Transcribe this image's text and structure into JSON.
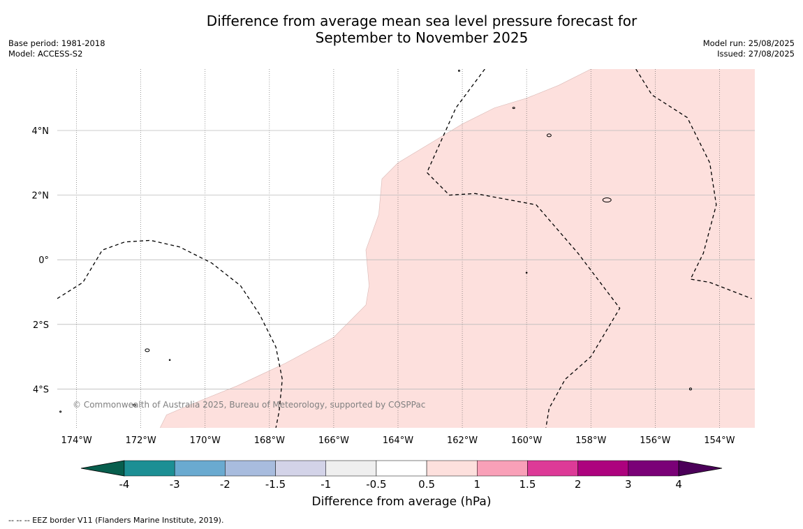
{
  "title_line1": "Difference from average mean sea level pressure forecast for",
  "title_line2": "September to November 2025",
  "meta": {
    "base_period": "Base period: 1981-2018",
    "model": "Model: ACCESS-S2",
    "model_run": "Model run: 25/08/2025",
    "issued": "Issued: 27/08/2025"
  },
  "copyright": "© Commonwealth of Australia 2025, Bureau of Meteorology, supported by COSPPac",
  "footer_note": "--  --  -- EEZ border V11 (Flanders Marine Institute, 2019).",
  "map": {
    "lon_range": [
      -174.6,
      -152.9
    ],
    "lat_range": [
      -5.2,
      5.9
    ],
    "lon_ticks": [
      {
        "value": -174,
        "label": "174°W"
      },
      {
        "value": -172,
        "label": "172°W"
      },
      {
        "value": -170,
        "label": "170°W"
      },
      {
        "value": -168,
        "label": "168°W"
      },
      {
        "value": -166,
        "label": "166°W"
      },
      {
        "value": -164,
        "label": "164°W"
      },
      {
        "value": -162,
        "label": "162°W"
      },
      {
        "value": -160,
        "label": "160°W"
      },
      {
        "value": -158,
        "label": "158°W"
      },
      {
        "value": -156,
        "label": "156°W"
      },
      {
        "value": -154,
        "label": "154°W"
      }
    ],
    "lat_ticks": [
      {
        "value": 4,
        "label": "4°N"
      },
      {
        "value": 2,
        "label": "2°N"
      },
      {
        "value": 0,
        "label": "0°"
      },
      {
        "value": -2,
        "label": "2°S"
      },
      {
        "value": -4,
        "label": "4°S"
      }
    ],
    "shaded_region": {
      "category": "0.5 to 1",
      "color": "#fde0dd",
      "boundary": [
        [
          -171.4,
          -5.2
        ],
        [
          -171.2,
          -4.8
        ],
        [
          -170.5,
          -4.5
        ],
        [
          -169.0,
          -3.9
        ],
        [
          -167.5,
          -3.2
        ],
        [
          -166.0,
          -2.4
        ],
        [
          -165.0,
          -1.4
        ],
        [
          -164.9,
          -0.8
        ],
        [
          -165.0,
          0.3
        ],
        [
          -164.6,
          1.4
        ],
        [
          -164.5,
          2.5
        ],
        [
          -164.0,
          3.0
        ],
        [
          -163.0,
          3.6
        ],
        [
          -162.0,
          4.2
        ],
        [
          -161.0,
          4.7
        ],
        [
          -160.0,
          5.0
        ],
        [
          -159.0,
          5.4
        ],
        [
          -158.0,
          5.9
        ]
      ]
    },
    "eez_borders": [
      [
        [
          -174.6,
          -1.2
        ],
        [
          -173.8,
          -0.7
        ],
        [
          -173.2,
          0.3
        ],
        [
          -172.5,
          0.55
        ],
        [
          -171.7,
          0.6
        ],
        [
          -170.8,
          0.4
        ],
        [
          -169.8,
          -0.1
        ],
        [
          -168.9,
          -0.8
        ],
        [
          -168.3,
          -1.7
        ],
        [
          -167.8,
          -2.7
        ],
        [
          -167.6,
          -3.7
        ],
        [
          -167.7,
          -4.7
        ],
        [
          -167.8,
          -5.2
        ]
      ],
      [
        [
          -161.3,
          5.9
        ],
        [
          -162.2,
          4.7
        ],
        [
          -163.1,
          2.7
        ],
        [
          -162.4,
          2.0
        ],
        [
          -161.6,
          2.05
        ],
        [
          -159.7,
          1.7
        ],
        [
          -158.4,
          0.2
        ],
        [
          -157.1,
          -1.5
        ],
        [
          -158.0,
          -3.0
        ],
        [
          -158.8,
          -3.7
        ],
        [
          -159.3,
          -4.6
        ],
        [
          -159.4,
          -5.2
        ]
      ],
      [
        [
          -156.6,
          5.9
        ],
        [
          -156.1,
          5.1
        ],
        [
          -155.0,
          4.4
        ],
        [
          -154.3,
          3.0
        ],
        [
          -154.1,
          1.7
        ],
        [
          -154.5,
          0.2
        ],
        [
          -154.9,
          -0.6
        ],
        [
          -154.3,
          -0.7
        ],
        [
          -153.0,
          -1.2
        ]
      ]
    ],
    "islands": [
      {
        "lon": -159.3,
        "lat": 3.85,
        "rx": 3,
        "ry": 2
      },
      {
        "lon": -157.5,
        "lat": 1.85,
        "rx": 6,
        "ry": 3
      },
      {
        "lon": -171.8,
        "lat": -2.8,
        "rx": 3,
        "ry": 2
      },
      {
        "lon": -172.2,
        "lat": -4.5,
        "rx": 2,
        "ry": 1.5
      },
      {
        "lon": -160.4,
        "lat": 4.7,
        "rx": 1.5,
        "ry": 1
      },
      {
        "lon": -154.9,
        "lat": -4.0,
        "rx": 1.5,
        "ry": 1.5
      },
      {
        "lon": -162.1,
        "lat": 5.85,
        "rx": 1,
        "ry": 1
      },
      {
        "lon": -174.5,
        "lat": -4.7,
        "rx": 1,
        "ry": 1
      },
      {
        "lon": -171.1,
        "lat": -3.1,
        "rx": 0.8,
        "ry": 0.8
      },
      {
        "lon": -160.0,
        "lat": -0.4,
        "rx": 0.8,
        "ry": 0.8
      }
    ]
  },
  "colorbar": {
    "title": "Difference from average (hPa)",
    "colors": [
      "#075e4d",
      "#1c8f94",
      "#6aaad0",
      "#a8bcde",
      "#d3d3e8",
      "#efefef",
      "#ffffff",
      "#fde0dd",
      "#f9a0b8",
      "#dd3a97",
      "#ad027e",
      "#7a0177",
      "#4b0059"
    ],
    "labels": [
      "-4",
      "-3",
      "-2",
      "-1.5",
      "-1",
      "-0.5",
      "0.5",
      "1",
      "1.5",
      "2",
      "3",
      "4"
    ]
  }
}
